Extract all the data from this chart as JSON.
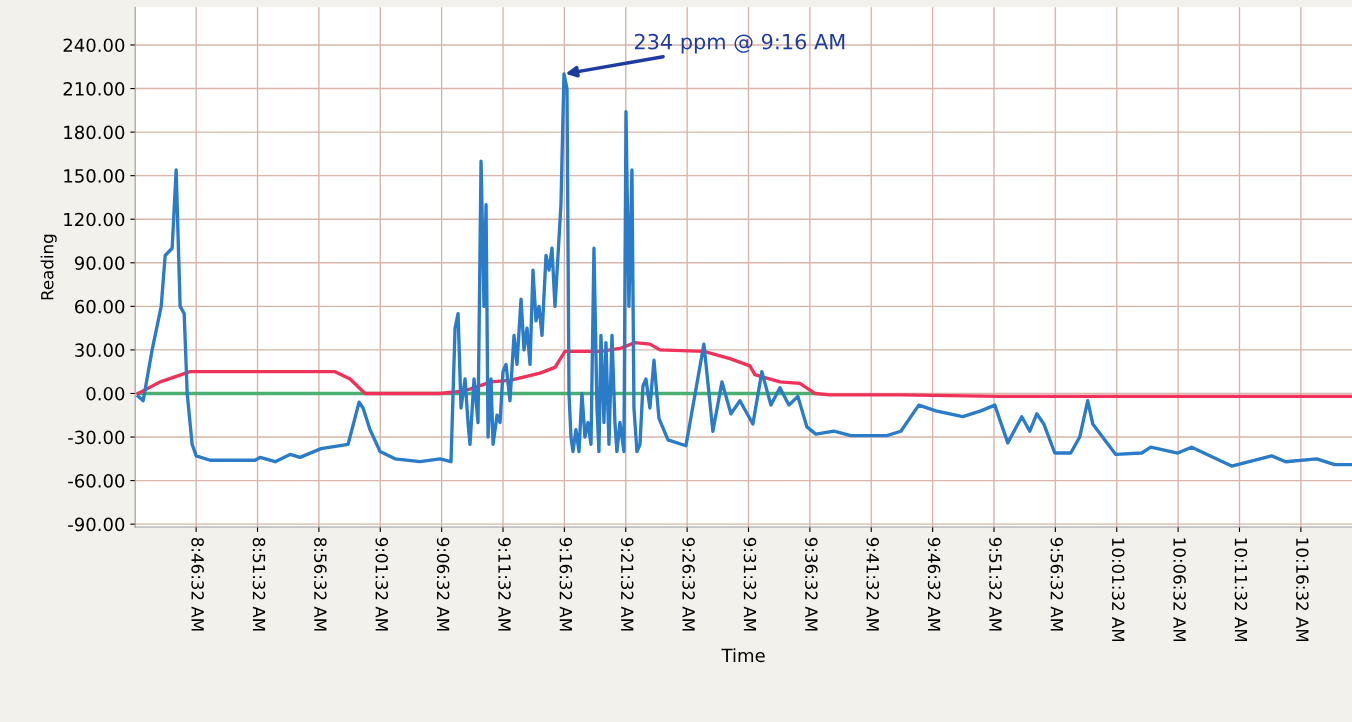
{
  "chart_data": {
    "type": "line",
    "xlabel": "Time",
    "ylabel": "Reading",
    "xlim": [
      8.6928,
      10.345
    ],
    "ylim": [
      -92,
      266
    ],
    "xticks": [
      {
        "value": 8.775556,
        "label": "8:46:32 AM"
      },
      {
        "value": 8.858889,
        "label": "8:51:32 AM"
      },
      {
        "value": 8.942222,
        "label": "8:56:32 AM"
      },
      {
        "value": 9.025556,
        "label": "9:01:32 AM"
      },
      {
        "value": 9.108889,
        "label": "9:06:32 AM"
      },
      {
        "value": 9.192222,
        "label": "9:11:32 AM"
      },
      {
        "value": 9.275556,
        "label": "9:16:32 AM"
      },
      {
        "value": 9.358889,
        "label": "9:21:32 AM"
      },
      {
        "value": 9.442222,
        "label": "9:26:32 AM"
      },
      {
        "value": 9.525556,
        "label": "9:31:32 AM"
      },
      {
        "value": 9.608889,
        "label": "9:36:32 AM"
      },
      {
        "value": 9.692222,
        "label": "9:41:32 AM"
      },
      {
        "value": 9.775556,
        "label": "9:46:32 AM"
      },
      {
        "value": 9.858889,
        "label": "9:51:32 AM"
      },
      {
        "value": 9.942222,
        "label": "9:56:32 AM"
      },
      {
        "value": 10.025556,
        "label": "10:01:32 AM"
      },
      {
        "value": 10.108889,
        "label": "10:06:32 AM"
      },
      {
        "value": 10.192222,
        "label": "10:11:32 AM"
      },
      {
        "value": 10.275556,
        "label": "10:16:32 AM"
      }
    ],
    "yticks": [
      {
        "value": -90,
        "label": "-90.00"
      },
      {
        "value": -60,
        "label": "-60.00"
      },
      {
        "value": -30,
        "label": "-30.00"
      },
      {
        "value": 0,
        "label": "0.00"
      },
      {
        "value": 30,
        "label": "30.00"
      },
      {
        "value": 60,
        "label": "60.00"
      },
      {
        "value": 90,
        "label": "90.00"
      },
      {
        "value": 120,
        "label": "120.00"
      },
      {
        "value": 150,
        "label": "150.00"
      },
      {
        "value": 180,
        "label": "180.00"
      },
      {
        "value": 210,
        "label": "210.00"
      },
      {
        "value": 240,
        "label": "240.00"
      }
    ],
    "grid": true,
    "series": [
      {
        "color": "#4caf70",
        "x": [
          8.6968,
          9.617
        ],
        "values": [
          0,
          0
        ]
      },
      {
        "color": "#f0325a",
        "x": [
          8.6968,
          8.7267,
          8.7674,
          8.9642,
          8.9846,
          9.0049,
          9.1067,
          9.1271,
          9.1474,
          9.1759,
          9.2017,
          9.2424,
          9.2628,
          9.2764,
          9.3239,
          9.351,
          9.3714,
          9.3917,
          9.4053,
          9.465,
          9.5003,
          9.5274,
          9.5342,
          9.5682,
          9.5953,
          9.6157,
          9.636,
          9.731,
          9.8667,
          10.3445
        ],
        "values": [
          0,
          8,
          15,
          15,
          10,
          0,
          0,
          1,
          3,
          8,
          9,
          14,
          18,
          29,
          29,
          31,
          35,
          34,
          30,
          29,
          24,
          19,
          13,
          8,
          7,
          0,
          -1,
          -1,
          -2,
          -2
        ]
      },
      {
        "color": "#2a7bc8",
        "x": [
          8.6968,
          8.7036,
          8.7158,
          8.7281,
          8.7335,
          8.743,
          8.7484,
          8.7538,
          8.7593,
          8.7634,
          8.7701,
          8.7756,
          8.7946,
          8.8556,
          8.8624,
          8.8828,
          8.9031,
          8.9167,
          8.9452,
          8.9819,
          8.9968,
          9.0022,
          9.0117,
          9.0253,
          9.0456,
          9.0796,
          9.1067,
          9.1216,
          9.1271,
          9.1312,
          9.1352,
          9.1407,
          9.1447,
          9.1474,
          9.1529,
          9.1583,
          9.1624,
          9.1664,
          9.1692,
          9.1719,
          9.1759,
          9.1787,
          9.1841,
          9.1882,
          9.1922,
          9.1963,
          9.2017,
          9.2072,
          9.2112,
          9.2167,
          9.2207,
          9.2248,
          9.2289,
          9.2329,
          9.237,
          9.2411,
          9.2452,
          9.2506,
          9.2547,
          9.2587,
          9.2628,
          9.2669,
          9.2709,
          9.275,
          9.2791,
          9.2818,
          9.2845,
          9.2872,
          9.2913,
          9.2954,
          9.2994,
          9.3035,
          9.3076,
          9.3117,
          9.3157,
          9.3198,
          9.3225,
          9.3252,
          9.3293,
          9.332,
          9.3361,
          9.3402,
          9.3442,
          9.3469,
          9.351,
          9.3564,
          9.3592,
          9.3632,
          9.3673,
          9.37,
          9.3741,
          9.3782,
          9.3822,
          9.3863,
          9.3917,
          9.3972,
          9.4039,
          9.4162,
          9.4406,
          9.465,
          9.4772,
          9.4895,
          9.5017,
          9.5139,
          9.5315,
          9.5437,
          9.556,
          9.5682,
          9.5804,
          9.5926,
          9.6048,
          9.617,
          9.6415,
          9.6645,
          9.7134,
          9.7324,
          9.7568,
          9.7799,
          9.8165,
          9.841,
          9.86,
          9.8776,
          9.8966,
          9.9075,
          9.917,
          9.9265,
          9.9414,
          9.9631,
          9.9753,
          9.9862,
          9.993,
          10.0242,
          10.0595,
          10.0717,
          10.1083,
          10.1273,
          10.1816,
          10.2359,
          10.2549,
          10.297,
          10.3214,
          10.3445
        ],
        "values": [
          -2,
          -5,
          30,
          60,
          95,
          100,
          154,
          60,
          55,
          0,
          -35,
          -43,
          -46,
          -46,
          -44,
          -47,
          -42,
          -44,
          -38,
          -35,
          -6,
          -10,
          -25,
          -40,
          -45,
          -47,
          -45,
          -47,
          45,
          55,
          -10,
          10,
          -20,
          -35,
          10,
          -20,
          160,
          60,
          130,
          -30,
          10,
          -35,
          -15,
          -20,
          15,
          20,
          -5,
          40,
          20,
          65,
          30,
          45,
          20,
          85,
          50,
          60,
          40,
          95,
          85,
          100,
          60,
          95,
          130,
          220,
          210,
          0,
          -30,
          -40,
          -25,
          -40,
          0,
          -30,
          -20,
          -35,
          100,
          -10,
          -40,
          40,
          -20,
          35,
          -35,
          40,
          -20,
          -40,
          -20,
          -40,
          194,
          60,
          154,
          -10,
          -40,
          -35,
          5,
          10,
          -10,
          23,
          -17,
          -32,
          -36,
          34,
          -26,
          8,
          -14,
          -5,
          -21,
          15,
          -8,
          4,
          -8,
          -2,
          -23,
          -28,
          -26,
          -29,
          -29,
          -26,
          -8,
          -12,
          -16,
          -12,
          -8,
          -34,
          -16,
          -26,
          -14,
          -21,
          -41,
          -41,
          -30,
          -5,
          -21,
          -42,
          -41,
          -37,
          -41,
          -37,
          -50,
          -43,
          -47,
          -45,
          -49,
          -49
        ]
      }
    ],
    "annotations": [
      {
        "text": "234 ppm @ 9:16 AM",
        "x": 9.275,
        "y": 220
      }
    ]
  }
}
